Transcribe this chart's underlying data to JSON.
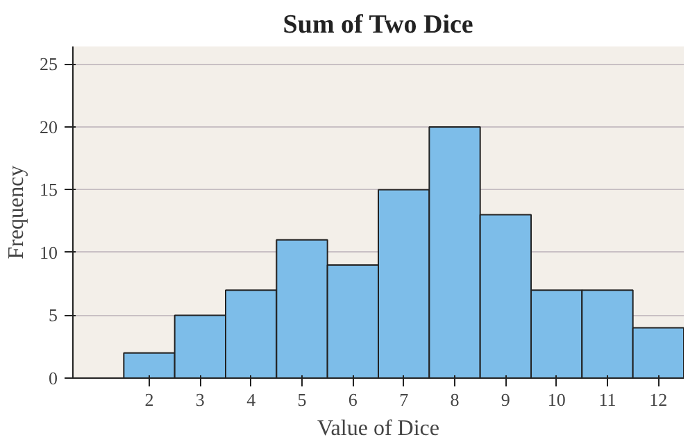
{
  "chart_data": {
    "type": "histogram",
    "title": "Sum of Two Dice",
    "xlabel": "Value of Dice",
    "ylabel": "Frequency",
    "bins": [
      1.5,
      2.5,
      3.5,
      4.5,
      5.5,
      6.5,
      7.5,
      8.5,
      9.5,
      10.5,
      11.5,
      12.5
    ],
    "values": [
      2,
      5,
      7,
      11,
      9,
      15,
      20,
      13,
      7,
      7,
      4
    ],
    "color": "#7dbde9",
    "xlim": [
      0.5,
      12.5
    ],
    "xticks": [
      2,
      3,
      4,
      5,
      6,
      7,
      8,
      9,
      10,
      11,
      12
    ],
    "ylim": [
      0,
      26.4
    ],
    "yticks": [
      0,
      5,
      10,
      15,
      20,
      25
    ],
    "grid": "y"
  }
}
